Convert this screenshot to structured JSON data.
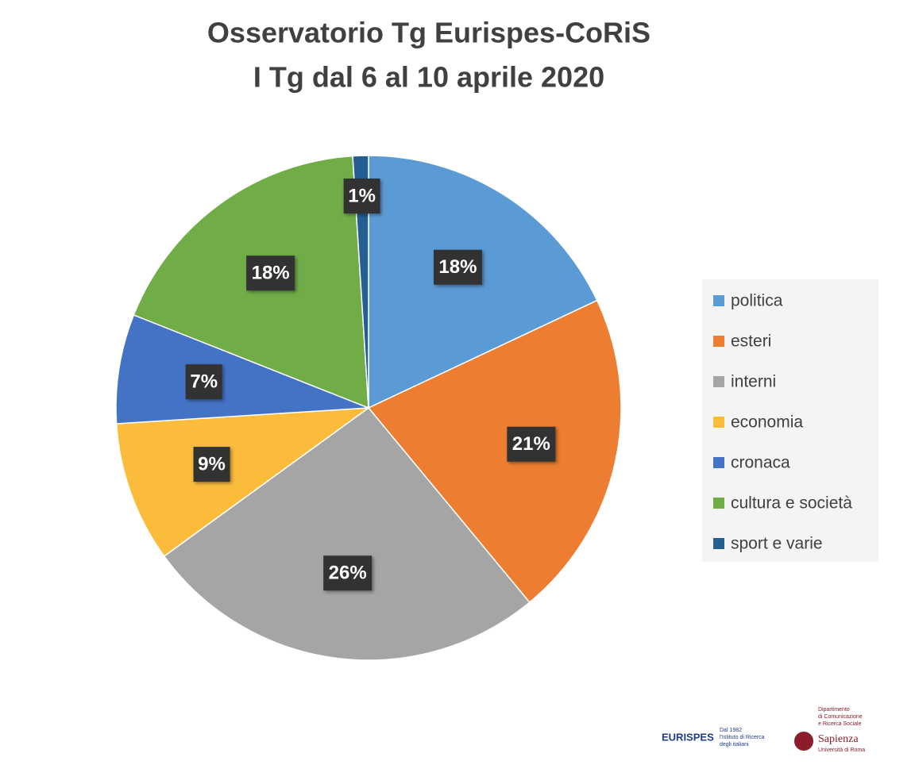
{
  "chart_data": {
    "type": "pie",
    "title": "Osservatorio Tg Eurispes-CoRiS",
    "subtitle": "I Tg dal 6 al 10 aprile 2020",
    "categories": [
      "politica",
      "esteri",
      "interni",
      "economia",
      "cronaca",
      "cultura e società",
      "sport e varie"
    ],
    "values": [
      18,
      21,
      26,
      9,
      7,
      18,
      1
    ],
    "value_labels": [
      "18%",
      "21%",
      "26%",
      "9%",
      "7%",
      "18%",
      "1%"
    ],
    "colors": [
      "#5b9bd5",
      "#ed7d31",
      "#a5a5a5",
      "#fbbc3c",
      "#4472c4",
      "#70ad47",
      "#255e91"
    ],
    "legend": "right"
  },
  "logos": {
    "eurispes": "EURISPES",
    "eurispes_tagline": [
      "Dal 1982",
      "l'Istituto di Ricerca",
      "degli italiani"
    ],
    "department": [
      "Dipartimento",
      "di Comunicazione",
      "e Ricerca Sociale"
    ],
    "sapienza": "Sapienza",
    "sapienza_sub": "Università di Roma"
  }
}
